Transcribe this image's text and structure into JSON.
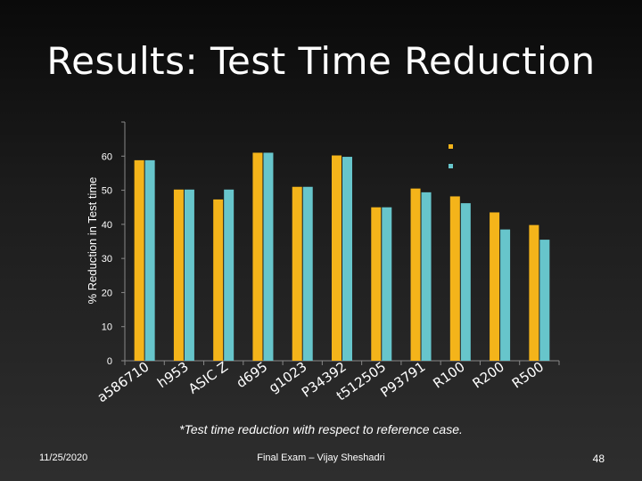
{
  "slide": {
    "title": "Results: Test Time Reduction",
    "footnote": "*Test time reduction with respect to reference case.",
    "date": "11/25/2020",
    "presenter": "Final Exam – Vijay Sheshadri",
    "page_number": "48"
  },
  "colors": {
    "series_1": "#F4B41A",
    "series_2": "#67C5CB",
    "axis": "#888888",
    "text": "#FFFFFF"
  },
  "chart_data": {
    "type": "bar",
    "title": "",
    "xlabel": "",
    "ylabel": "% Reduction in Test time",
    "ylim": [
      0,
      70
    ],
    "y_ticks": [
      "0",
      "10",
      "20",
      "30",
      "40",
      "50",
      "60"
    ],
    "categories": [
      "a586710",
      "h953",
      "ASIC Z",
      "d695",
      "g1023",
      "P34392",
      "t512505",
      "P93791",
      "R100",
      "R200",
      "R500"
    ],
    "series": [
      {
        "values": [
          58.8,
          50.2,
          47.3,
          61.0,
          51.0,
          60.2,
          45.0,
          50.5,
          48.2,
          43.5,
          39.8
        ]
      },
      {
        "values": [
          58.8,
          50.2,
          50.2,
          61.0,
          51.0,
          59.8,
          45.0,
          49.4,
          46.2,
          38.5,
          35.5
        ]
      }
    ],
    "grid": false,
    "legend_position": "top-right"
  }
}
